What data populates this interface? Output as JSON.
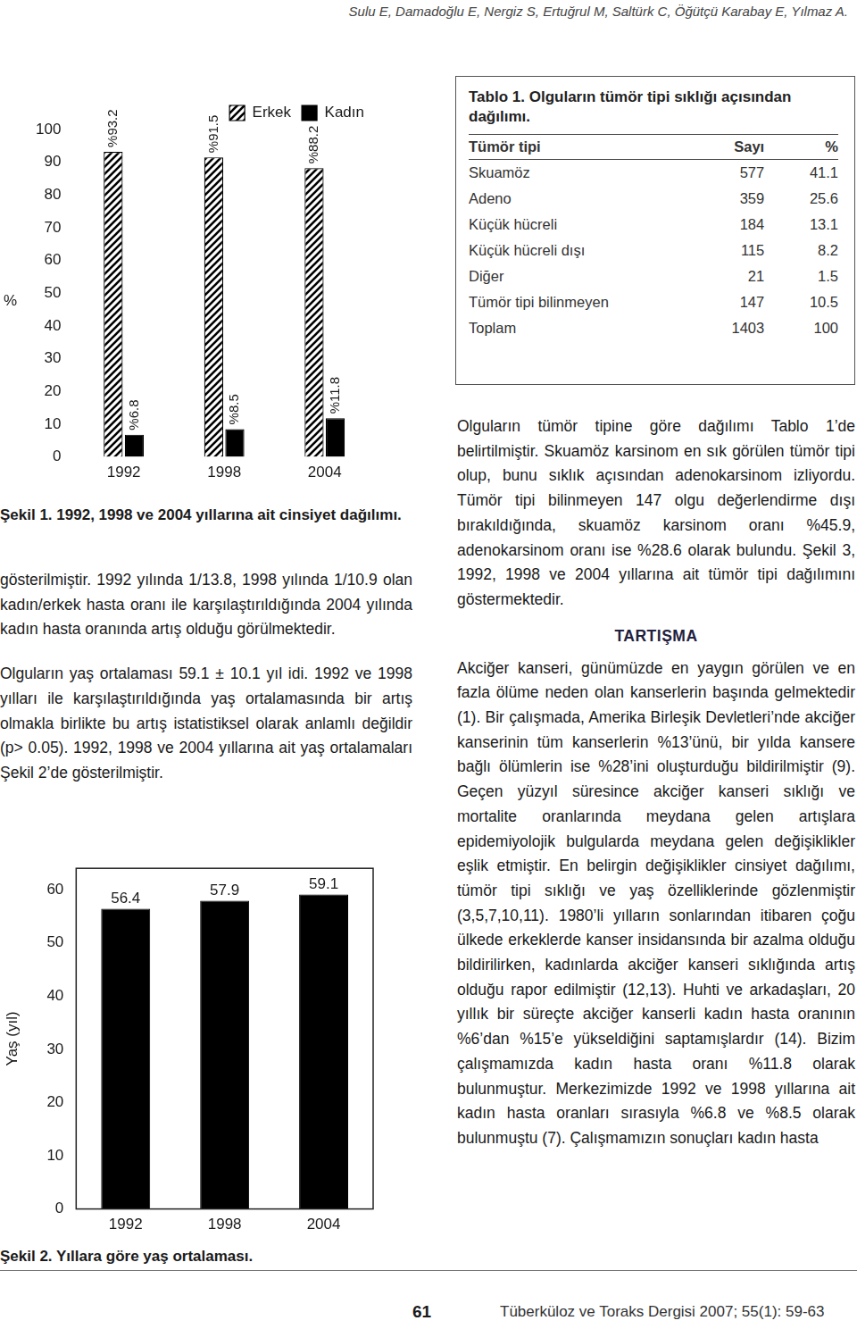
{
  "header": "Sulu E, Damadoğlu E, Nergiz S, Ertuğrul M, Saltürk C, Öğütçü Karabay E, Yılmaz A.",
  "chart_data": [
    {
      "type": "bar",
      "title": "Şekil 1. 1992, 1998 ve 2004 yıllarına ait cinsiyet dağılımı.",
      "y_label": "%",
      "categories": [
        "1992",
        "1998",
        "2004"
      ],
      "series": [
        {
          "name": "Erkek",
          "color": "#000000",
          "values": [
            93.2,
            91.5,
            88.2
          ],
          "value_labels": [
            "%93.2",
            "%91.5",
            "%88.2"
          ]
        },
        {
          "name": "Kadın",
          "color": "#000000",
          "values": [
            6.8,
            8.5,
            11.8
          ],
          "value_labels": [
            "%6.8",
            "%8.5",
            "%11.8"
          ]
        }
      ],
      "ylim": [
        0,
        100
      ],
      "yticks": [
        0,
        10,
        20,
        30,
        40,
        50,
        60,
        70,
        80,
        90,
        100
      ],
      "grid": false,
      "legend": "top-right",
      "data_labels": true
    },
    {
      "type": "bar",
      "title": "Şekil 2. Yıllara göre yaş ortalaması.",
      "y_label": "Yaş (yıl)",
      "categories": [
        "1992",
        "1998",
        "2004"
      ],
      "values": [
        56.4,
        57.9,
        59.1
      ],
      "color": "#000000",
      "ylim": [
        0,
        64
      ],
      "yticks": [
        0,
        10,
        20,
        30,
        40,
        50,
        60
      ],
      "grid": false,
      "data_labels": true
    }
  ],
  "text": {
    "left": [
      "gösterilmiştir. 1992 yılında 1/13.8, 1998 yılında 1/10.9 olan kadın/erkek hasta oranı ile karşılaştırıldığında 2004 yılında kadın hasta oranında artış olduğu görülmektedir.",
      "Olguların yaş ortalaması 59.1 ± 10.1 yıl idi. 1992 ve 1998 yılları ile karşılaştırıldığında yaş ortalamasında bir artış olmakla birlikte bu artış istatistiksel olarak anlamlı değildir (p> 0.05). 1992, 1998 ve 2004 yıllarına ait yaş ortalamaları Şekil 2’de gösterilmiştir."
    ],
    "right": [
      "Olguların tümör tipine göre dağılımı Tablo 1’de belirtilmiştir. Skuamöz karsinom en sık görülen tümör tipi olup, bunu sıklık açısından adenokarsinom izliyordu. Tümör tipi bilinmeyen 147 olgu değerlendirme dışı bırakıldığında, skuamöz karsinom oranı %45.9, adenokarsinom oranı ise %28.6 olarak bulundu. Şekil 3, 1992, 1998 ve 2004 yıllarına ait tümör tipi dağılımını göstermektedir."
    ],
    "heading": "TARTIŞMA",
    "discussion": [
      "Akciğer kanseri, günümüzde en yaygın görülen ve en fazla ölüme neden olan kanserlerin başında gelmektedir (1). Bir çalışmada, Amerika Birleşik Devletleri’nde akciğer kanserinin tüm kanserlerin %13’ünü, bir yılda kansere bağlı ölümlerin ise %28’ini oluşturduğu bildirilmiştir (9). Geçen yüzyıl süresince akciğer kanseri sıklığı ve mortalite oranlarında meydana gelen artışlara epidemiyolojik bulgularda meydana gelen değişiklikler eşlik etmiştir. En belirgin değişiklikler cinsiyet dağılımı, tümör tipi sıklığı ve yaş özelliklerinde gözlenmiştir (3,5,7,10,11). 1980’li yılların sonlarından itibaren çoğu ülkede erkeklerde kanser insidansında bir azalma olduğu bildirilirken, kadınlarda akciğer kanseri sıklığında artış olduğu rapor edilmiştir (12,13). Huhti ve arkadaşları, 20 yıllık bir süreçte akciğer kanserli kadın hasta oranının %6’dan %15’e yükseldiğini saptamışlardır (14). Bizim çalışmamızda kadın hasta oranı %11.8 olarak bulunmuştur. Merkezimizde 1992 ve 1998 yıllarına ait kadın hasta oranları sırasıyla %6.8 ve %8.5 olarak bulunmuştu (7). Çalışmamızın sonuçları kadın hasta"
    ]
  },
  "table": {
    "caption": "Tablo 1. Olguların tümör tipi sıklığı açısından dağılımı.",
    "header": [
      "Tümör tipi",
      "Sayı",
      "%"
    ],
    "rows": [
      [
        "Skuamöz",
        "577",
        "41.1"
      ],
      [
        "Adeno",
        "359",
        "25.6"
      ],
      [
        "Küçük hücreli",
        "184",
        "13.1"
      ],
      [
        "Küçük hücreli dışı",
        "115",
        "8.2"
      ],
      [
        "Diğer",
        "21",
        "1.5"
      ],
      [
        "Tümör tipi bilinmeyen",
        "147",
        "10.5"
      ],
      [
        "Toplam",
        "1403",
        "100"
      ]
    ]
  },
  "footer": {
    "page": "61",
    "journal": "Tüberküloz ve Toraks Dergisi 2007; 55(1): 59-63"
  }
}
